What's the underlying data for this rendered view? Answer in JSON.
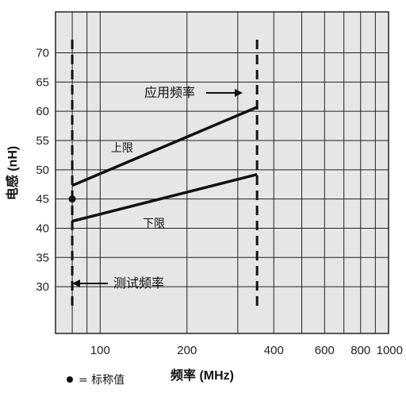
{
  "chart_data": {
    "type": "line",
    "xlabel": "频率 (MHz)",
    "ylabel": "电感 (nH)",
    "x_scale": "log",
    "xlim": [
      70,
      1000
    ],
    "ylim": [
      22,
      77
    ],
    "x_ticks": [
      100,
      200,
      400,
      600,
      800,
      1000
    ],
    "x_tick_labels": [
      "100",
      "200",
      "400",
      "600",
      "800",
      "1000"
    ],
    "y_ticks": [
      30,
      35,
      40,
      45,
      50,
      55,
      60,
      65,
      70
    ],
    "grid": true,
    "series": [
      {
        "name": "上限",
        "x": [
          80,
          350
        ],
        "y": [
          47.3,
          60.7
        ]
      },
      {
        "name": "下限",
        "x": [
          80,
          350
        ],
        "y": [
          41.2,
          49.2
        ]
      }
    ],
    "points": [
      {
        "name": "= 标称值",
        "x": 80,
        "y": 45
      }
    ],
    "vlines": [
      {
        "label": "测试频率",
        "x": 80
      },
      {
        "label": "应用频率",
        "x": 350
      }
    ],
    "legend_text": "= 标称值"
  }
}
